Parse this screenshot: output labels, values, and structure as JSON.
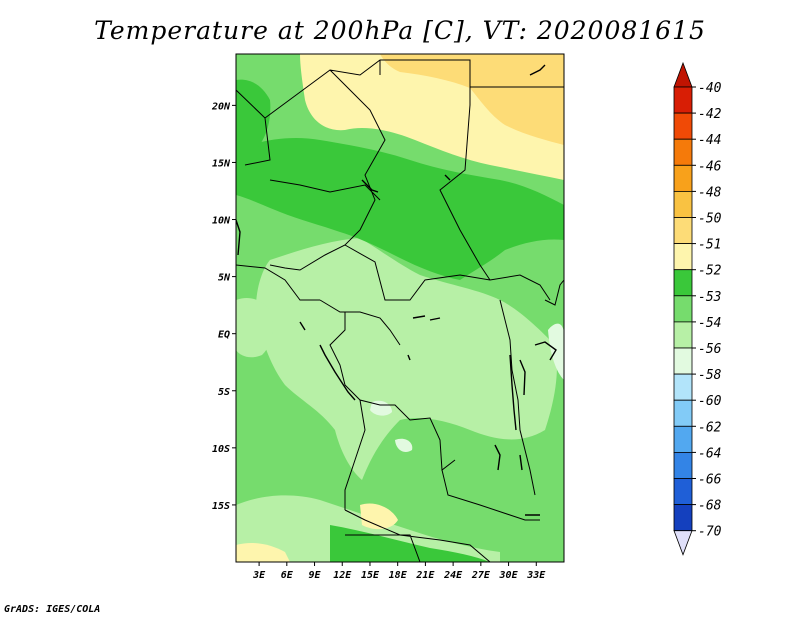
{
  "title": "Temperature at 200hPa [C], VT: 2020081615",
  "credit": "GrADS: IGES/COLA",
  "map": {
    "lat_range": [
      -20,
      24.5
    ],
    "lon_range": [
      0.5,
      36
    ],
    "lat_ticks": [
      {
        "value": 20,
        "label": "20N"
      },
      {
        "value": 15,
        "label": "15N"
      },
      {
        "value": 10,
        "label": "10N"
      },
      {
        "value": 5,
        "label": "5N"
      },
      {
        "value": 0,
        "label": "EQ"
      },
      {
        "value": -5,
        "label": "5S"
      },
      {
        "value": -10,
        "label": "10S"
      },
      {
        "value": -15,
        "label": "15S"
      }
    ],
    "lon_ticks": [
      {
        "value": 3,
        "label": "3E"
      },
      {
        "value": 6,
        "label": "6E"
      },
      {
        "value": 9,
        "label": "9E"
      },
      {
        "value": 12,
        "label": "12E"
      },
      {
        "value": 15,
        "label": "15E"
      },
      {
        "value": 18,
        "label": "18E"
      },
      {
        "value": 21,
        "label": "21E"
      },
      {
        "value": 24,
        "label": "24E"
      },
      {
        "value": 27,
        "label": "27E"
      },
      {
        "value": 30,
        "label": "30E"
      },
      {
        "value": 33,
        "label": "33E"
      }
    ]
  },
  "colorbar": {
    "items": [
      {
        "label": "-40",
        "color": "#d81e05"
      },
      {
        "label": "-42",
        "color": "#f04a06"
      },
      {
        "label": "-44",
        "color": "#f57a0a"
      },
      {
        "label": "-46",
        "color": "#f8a11b"
      },
      {
        "label": "-48",
        "color": "#f9c242"
      },
      {
        "label": "-50",
        "color": "#fddc77"
      },
      {
        "label": "-51",
        "color": "#fef5ad"
      },
      {
        "label": "-52",
        "color": "#3ac83a"
      },
      {
        "label": "-53",
        "color": "#76dc6d"
      },
      {
        "label": "-54",
        "color": "#b7f0a6"
      },
      {
        "label": "-56",
        "color": "#e2fae0"
      },
      {
        "label": "-58",
        "color": "#b2e4fa"
      },
      {
        "label": "-60",
        "color": "#82cbf7"
      },
      {
        "label": "-62",
        "color": "#52a8f0"
      },
      {
        "label": "-64",
        "color": "#3384e6"
      },
      {
        "label": "-66",
        "color": "#1f5fd7"
      },
      {
        "label": "-68",
        "color": "#1440be"
      },
      {
        "label": "-70",
        "color": "#0a1c8c"
      }
    ],
    "bottom_color": "#e0e0fa",
    "top_color": "#c01402"
  }
}
